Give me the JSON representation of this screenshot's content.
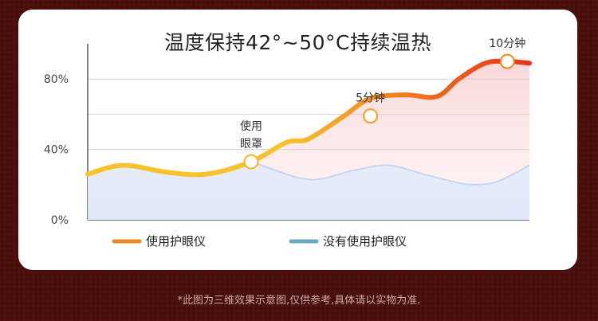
{
  "chart_data": {
    "type": "area",
    "title": "温度保持42°~50°C持续温热",
    "yticks": [
      "80%",
      "40%",
      "0%"
    ],
    "ytick_values": [
      80,
      40,
      0
    ],
    "ylim": [
      0,
      100
    ],
    "xlim": [
      0,
      100
    ],
    "grid": true,
    "legend_position": "bottom-left",
    "series": [
      {
        "name": "使用护眼仪",
        "color_start": "#f7c22c",
        "color_end": "#e8311a",
        "x": [
          0,
          8,
          18,
          27,
          37,
          45,
          50,
          58,
          64,
          72,
          79,
          84,
          90,
          95,
          100
        ],
        "y": [
          26,
          31,
          27,
          26,
          33,
          44,
          46,
          59,
          69,
          71,
          70,
          80,
          89,
          90,
          89
        ]
      },
      {
        "name": "没有使用护眼仪",
        "color": "#6aa8c4",
        "x": [
          37,
          50,
          60,
          68,
          76,
          84,
          88,
          93,
          100
        ],
        "y": [
          33,
          23,
          28,
          31,
          26,
          21,
          20,
          22,
          31
        ]
      }
    ],
    "annotations": [
      {
        "text": [
          "使用",
          "眼罩"
        ],
        "x": 37,
        "y": 33
      },
      {
        "text": [
          "5分钟"
        ],
        "x": 64,
        "y": 59
      },
      {
        "text": [
          "10分钟"
        ],
        "x": 95,
        "y": 90
      }
    ]
  },
  "footnote": "*此图为三维效果示意图,仅供参考,具体请以实物为准."
}
